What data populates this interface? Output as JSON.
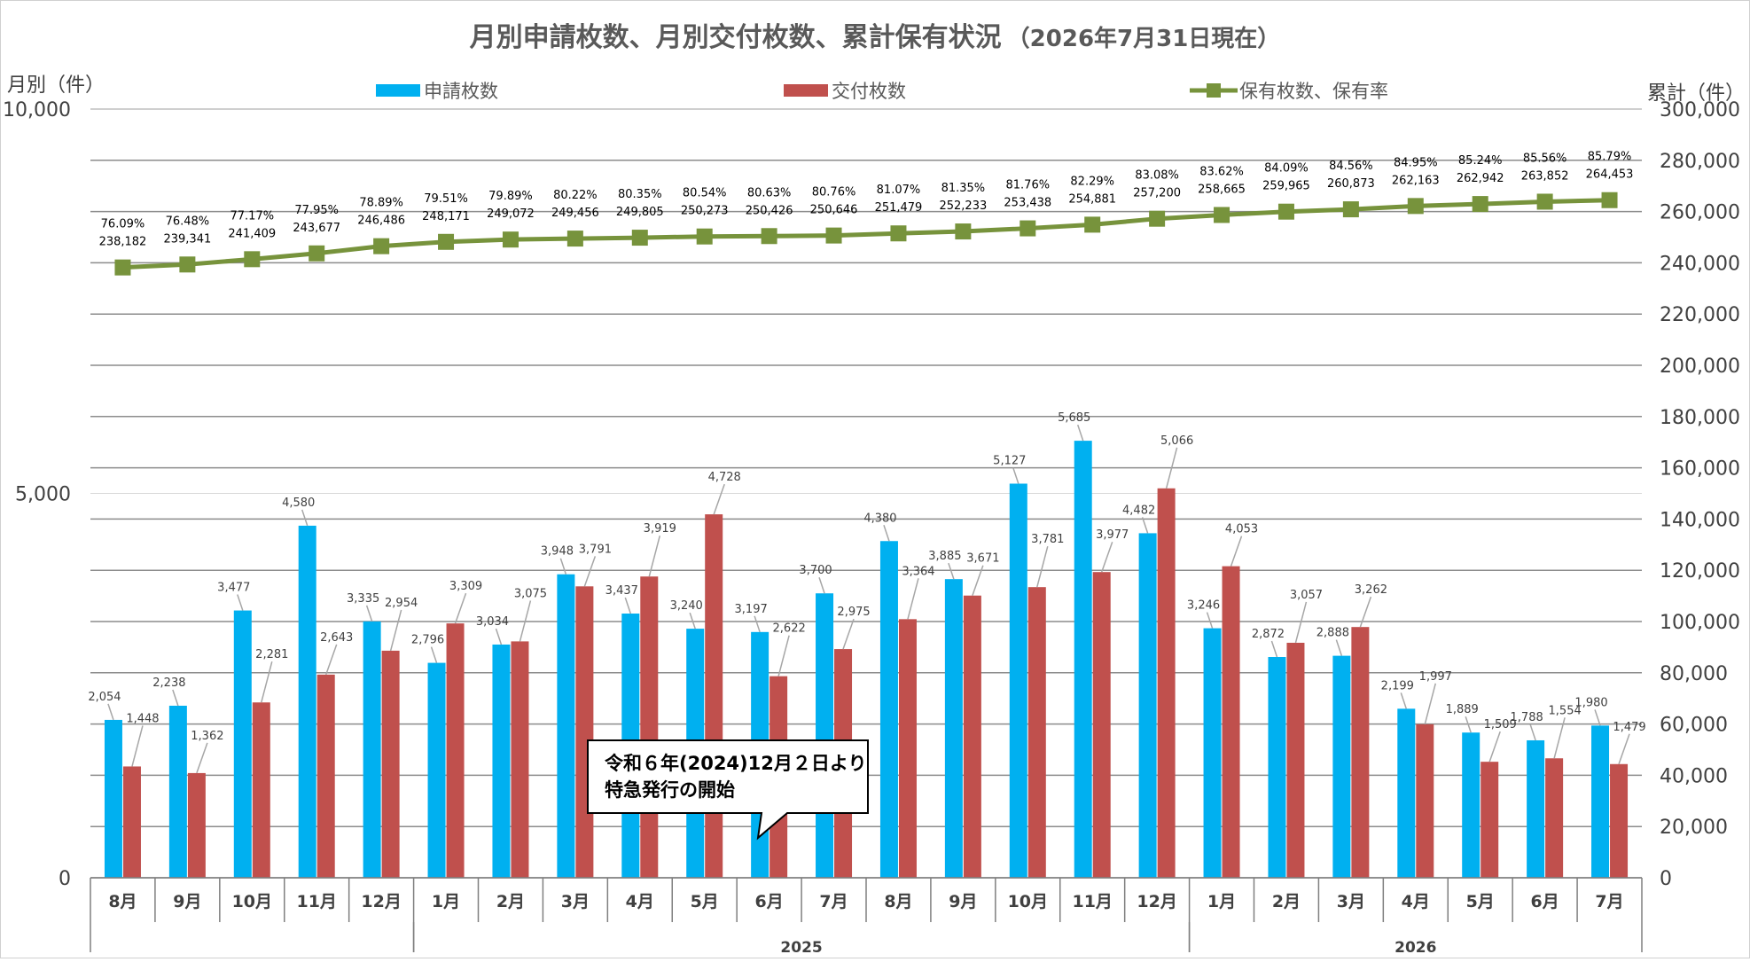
{
  "chart_data": {
    "type": "bar",
    "title": "月別申請枚数、月別交付枚数、累計保有状況",
    "subtitle": "（2026年7月31日現在）",
    "left_axis_title": "月別（件）",
    "right_axis_title": "累計（件）",
    "left_axis": {
      "min": 0,
      "max": 10000,
      "ticks": [
        0,
        5000,
        10000
      ],
      "tick_labels": [
        "0",
        "5,000",
        "10,000"
      ]
    },
    "right_axis": {
      "min": 0,
      "max": 300000,
      "ticks": [
        0,
        20000,
        40000,
        60000,
        80000,
        100000,
        120000,
        140000,
        160000,
        180000,
        200000,
        220000,
        240000,
        260000,
        280000,
        300000
      ],
      "tick_labels": [
        "0",
        "20,000",
        "40,000",
        "60,000",
        "80,000",
        "100,000",
        "120,000",
        "140,000",
        "160,000",
        "180,000",
        "200,000",
        "220,000",
        "240,000",
        "260,000",
        "280,000",
        "300,000"
      ]
    },
    "grid": true,
    "legend_position": "top",
    "categories": [
      "8月",
      "9月",
      "10月",
      "11月",
      "12月",
      "1月",
      "2月",
      "3月",
      "4月",
      "5月",
      "6月",
      "7月",
      "8月",
      "9月",
      "10月",
      "11月",
      "12月",
      "1月",
      "2月",
      "3月",
      "4月",
      "5月",
      "6月",
      "7月"
    ],
    "year_groups": [
      {
        "label": "",
        "start": 0,
        "end": 4
      },
      {
        "label": "2025",
        "start": 5,
        "end": 16
      },
      {
        "label": "2026",
        "start": 17,
        "end": 23
      }
    ],
    "series": [
      {
        "name": "申請枚数",
        "type": "bar",
        "axis": "left",
        "color": "#00B0F0",
        "values": [
          2054,
          2238,
          3477,
          4580,
          3335,
          2796,
          3034,
          3948,
          3437,
          3240,
          3197,
          3700,
          4380,
          3885,
          5127,
          5685,
          4482,
          3246,
          2872,
          2888,
          2199,
          1889,
          1788,
          1980
        ],
        "labels": [
          "2,054",
          "2,238",
          "3,477",
          "4,580",
          "3,335",
          "2,796",
          "3,034",
          "3,948",
          "3,437",
          "3,240",
          "3,197",
          "3,700",
          "4,380",
          "3,885",
          "5,127",
          "5,685",
          "4,482",
          "3,246",
          "2,872",
          "2,888",
          "2,199",
          "1,889",
          "1,788",
          "1,980"
        ]
      },
      {
        "name": "交付枚数",
        "type": "bar",
        "axis": "left",
        "color": "#C0504D",
        "values": [
          1448,
          1362,
          2281,
          2643,
          2954,
          3309,
          3075,
          3791,
          3919,
          4728,
          2622,
          2975,
          3364,
          3671,
          3781,
          3977,
          5066,
          4053,
          3057,
          3262,
          1997,
          1509,
          1554,
          1479
        ],
        "labels": [
          "1,448",
          "1,362",
          "2,281",
          "2,643",
          "2,954",
          "3,309",
          "3,075",
          "3,791",
          "3,919",
          "4,728",
          "2,622",
          "2,975",
          "3,364",
          "3,671",
          "3,781",
          "3,977",
          "5,066",
          "4,053",
          "3,057",
          "3,262",
          "1,997",
          "1,509",
          "1,554",
          "1,479"
        ]
      },
      {
        "name": "保有枚数、保有率",
        "type": "line",
        "axis": "right",
        "color": "#77933C",
        "values": [
          238182,
          239341,
          241409,
          243677,
          246486,
          248171,
          249072,
          249456,
          249805,
          250273,
          250426,
          250646,
          251479,
          252233,
          253438,
          254881,
          257200,
          258665,
          259965,
          260873,
          262163,
          262942,
          263852,
          264453
        ],
        "labels": [
          "238,182",
          "239,341",
          "241,409",
          "243,677",
          "246,486",
          "248,171",
          "249,072",
          "249,456",
          "249,805",
          "250,273",
          "250,426",
          "250,646",
          "251,479",
          "252,233",
          "253,438",
          "254,881",
          "257,200",
          "258,665",
          "259,965",
          "260,873",
          "262,163",
          "262,942",
          "263,852",
          "264,453"
        ],
        "rates": [
          "76.09%",
          "76.48%",
          "77.17%",
          "77.95%",
          "78.89%",
          "79.51%",
          "79.89%",
          "80.22%",
          "80.35%",
          "80.54%",
          "80.63%",
          "80.76%",
          "81.07%",
          "81.35%",
          "81.76%",
          "82.29%",
          "83.08%",
          "83.62%",
          "84.09%",
          "84.56%",
          "84.95%",
          "85.24%",
          "85.56%",
          "85.79%"
        ]
      }
    ],
    "annotation": {
      "lines": [
        "令和６年(2024)12月２日より",
        "特急発行の開始"
      ]
    }
  }
}
